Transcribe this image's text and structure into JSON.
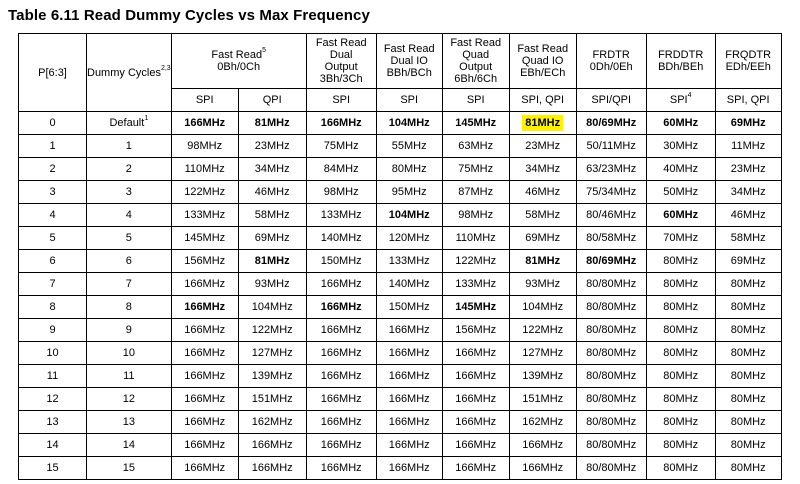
{
  "title": "Table 6.11 Read Dummy Cycles vs Max Frequency",
  "header": {
    "p_col": "P[6:3]",
    "dummy_col": {
      "text": "Dummy Cycles",
      "sup": "2,3"
    },
    "groups": [
      {
        "lines": [
          "Fast Read",
          "0Bh/0Ch"
        ],
        "sup": "5",
        "span": 2
      },
      {
        "lines": [
          "Fast Read",
          "Dual",
          "Output",
          "3Bh/3Ch"
        ],
        "span": 1
      },
      {
        "lines": [
          "Fast Read",
          "Dual IO",
          "BBh/BCh"
        ],
        "span": 1
      },
      {
        "lines": [
          "Fast Read",
          "Quad",
          "Output",
          "6Bh/6Ch"
        ],
        "span": 1
      },
      {
        "lines": [
          "Fast Read",
          "Quad IO",
          "EBh/ECh"
        ],
        "span": 1
      },
      {
        "lines": [
          "FRDTR",
          "0Dh/0Eh"
        ],
        "span": 1
      },
      {
        "lines": [
          "FRDDTR",
          "BDh/BEh"
        ],
        "span": 1
      },
      {
        "lines": [
          "FRQDTR",
          "EDh/EEh"
        ],
        "span": 1
      }
    ],
    "modes": [
      "SPI",
      "QPI",
      "SPI",
      "SPI",
      "SPI",
      "SPI, QPI",
      "SPI/QPI",
      "SPI",
      "SPI, QPI"
    ],
    "mode_sups": [
      "",
      "",
      "",
      "",
      "",
      "",
      "",
      "4",
      ""
    ]
  },
  "rows": [
    {
      "p": "0",
      "dummy": "Default",
      "dummy_sup": "1",
      "vals": [
        "166MHz",
        "81MHz",
        "166MHz",
        "104MHz",
        "145MHz",
        "81MHz",
        "80/69MHz",
        "60MHz",
        "69MHz"
      ],
      "bold": [
        0,
        1,
        2,
        3,
        4,
        5,
        6,
        7,
        8
      ],
      "highlight": [
        5
      ]
    },
    {
      "p": "1",
      "dummy": "1",
      "vals": [
        "98MHz",
        "23MHz",
        "75MHz",
        "55MHz",
        "63MHz",
        "23MHz",
        "50/11MHz",
        "30MHz",
        "11MHz"
      ],
      "bold": [],
      "highlight": []
    },
    {
      "p": "2",
      "dummy": "2",
      "vals": [
        "110MHz",
        "34MHz",
        "84MHz",
        "80MHz",
        "75MHz",
        "34MHz",
        "63/23MHz",
        "40MHz",
        "23MHz"
      ],
      "bold": [],
      "highlight": []
    },
    {
      "p": "3",
      "dummy": "3",
      "vals": [
        "122MHz",
        "46MHz",
        "98MHz",
        "95MHz",
        "87MHz",
        "46MHz",
        "75/34MHz",
        "50MHz",
        "34MHz"
      ],
      "bold": [],
      "highlight": []
    },
    {
      "p": "4",
      "dummy": "4",
      "vals": [
        "133MHz",
        "58MHz",
        "133MHz",
        "104MHz",
        "98MHz",
        "58MHz",
        "80/46MHz",
        "60MHz",
        "46MHz"
      ],
      "bold": [
        3,
        7
      ],
      "highlight": []
    },
    {
      "p": "5",
      "dummy": "5",
      "vals": [
        "145MHz",
        "69MHz",
        "140MHz",
        "120MHz",
        "110MHz",
        "69MHz",
        "80/58MHz",
        "70MHz",
        "58MHz"
      ],
      "bold": [],
      "highlight": []
    },
    {
      "p": "6",
      "dummy": "6",
      "vals": [
        "156MHz",
        "81MHz",
        "150MHz",
        "133MHz",
        "122MHz",
        "81MHz",
        "80/69MHz",
        "80MHz",
        "69MHz"
      ],
      "bold": [
        1,
        5,
        6
      ],
      "highlight": []
    },
    {
      "p": "7",
      "dummy": "7",
      "vals": [
        "166MHz",
        "93MHz",
        "166MHz",
        "140MHz",
        "133MHz",
        "93MHz",
        "80/80MHz",
        "80MHz",
        "80MHz"
      ],
      "bold": [],
      "highlight": []
    },
    {
      "p": "8",
      "dummy": "8",
      "vals": [
        "166MHz",
        "104MHz",
        "166MHz",
        "150MHz",
        "145MHz",
        "104MHz",
        "80/80MHz",
        "80MHz",
        "80MHz"
      ],
      "bold": [
        0,
        2,
        4
      ],
      "highlight": []
    },
    {
      "p": "9",
      "dummy": "9",
      "vals": [
        "166MHz",
        "122MHz",
        "166MHz",
        "166MHz",
        "156MHz",
        "122MHz",
        "80/80MHz",
        "80MHz",
        "80MHz"
      ],
      "bold": [],
      "highlight": []
    },
    {
      "p": "10",
      "dummy": "10",
      "vals": [
        "166MHz",
        "127MHz",
        "166MHz",
        "166MHz",
        "166MHz",
        "127MHz",
        "80/80MHz",
        "80MHz",
        "80MHz"
      ],
      "bold": [],
      "highlight": []
    },
    {
      "p": "11",
      "dummy": "11",
      "vals": [
        "166MHz",
        "139MHz",
        "166MHz",
        "166MHz",
        "166MHz",
        "139MHz",
        "80/80MHz",
        "80MHz",
        "80MHz"
      ],
      "bold": [],
      "highlight": []
    },
    {
      "p": "12",
      "dummy": "12",
      "vals": [
        "166MHz",
        "151MHz",
        "166MHz",
        "166MHz",
        "166MHz",
        "151MHz",
        "80/80MHz",
        "80MHz",
        "80MHz"
      ],
      "bold": [],
      "highlight": []
    },
    {
      "p": "13",
      "dummy": "13",
      "vals": [
        "166MHz",
        "162MHz",
        "166MHz",
        "166MHz",
        "166MHz",
        "162MHz",
        "80/80MHz",
        "80MHz",
        "80MHz"
      ],
      "bold": [],
      "highlight": []
    },
    {
      "p": "14",
      "dummy": "14",
      "vals": [
        "166MHz",
        "166MHz",
        "166MHz",
        "166MHz",
        "166MHz",
        "166MHz",
        "80/80MHz",
        "80MHz",
        "80MHz"
      ],
      "bold": [],
      "highlight": []
    },
    {
      "p": "15",
      "dummy": "15",
      "vals": [
        "166MHz",
        "166MHz",
        "166MHz",
        "166MHz",
        "166MHz",
        "166MHz",
        "80/80MHz",
        "80MHz",
        "80MHz"
      ],
      "bold": [],
      "highlight": []
    }
  ],
  "colors": {
    "highlight": "#fff200",
    "border": "#000000"
  }
}
